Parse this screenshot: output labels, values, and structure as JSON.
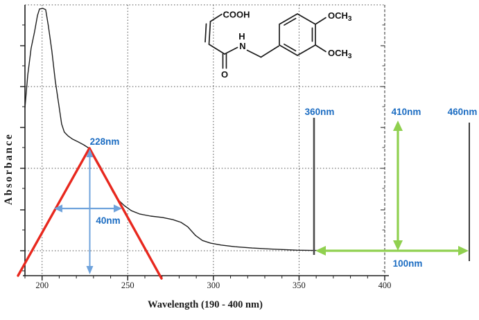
{
  "chart_data": {
    "type": "line",
    "title": "",
    "xlabel": "Wavelength (190 - 400 nm)",
    "ylabel": "Absorbance",
    "xlim": [
      190,
      400
    ],
    "ylim": [
      0,
      1
    ],
    "x_ticks": [
      200,
      250,
      300,
      350,
      400
    ],
    "x_tick_labels": [
      "200",
      "250",
      "300",
      "350",
      "400"
    ],
    "x_minor_tick_step_nm": 10,
    "grid": true,
    "legend": "none",
    "series": [
      {
        "name": "uv-vis-absorbance-spectrum",
        "points_nm_abs": [
          [
            190.0,
            0.62
          ],
          [
            191.6,
            0.74
          ],
          [
            193.6,
            0.84
          ],
          [
            195.6,
            0.9
          ],
          [
            197.3,
            0.96
          ],
          [
            198.5,
            0.985
          ],
          [
            200.5,
            0.987
          ],
          [
            202.1,
            0.982
          ],
          [
            203.7,
            0.92
          ],
          [
            205.7,
            0.83
          ],
          [
            207.7,
            0.72
          ],
          [
            209.8,
            0.63
          ],
          [
            211.4,
            0.56
          ],
          [
            213.0,
            0.53
          ],
          [
            215.0,
            0.517
          ],
          [
            217.8,
            0.504
          ],
          [
            221.0,
            0.494
          ],
          [
            224.3,
            0.483
          ],
          [
            227.5,
            0.47
          ],
          [
            230.7,
            0.44
          ],
          [
            234.3,
            0.4
          ],
          [
            238.0,
            0.35
          ],
          [
            241.2,
            0.31
          ],
          [
            244.4,
            0.28
          ],
          [
            248.1,
            0.258
          ],
          [
            252.1,
            0.24
          ],
          [
            256.9,
            0.228
          ],
          [
            263.4,
            0.22
          ],
          [
            270.2,
            0.215
          ],
          [
            276.3,
            0.207
          ],
          [
            281.1,
            0.197
          ],
          [
            285.1,
            0.18
          ],
          [
            289.6,
            0.148
          ],
          [
            293.6,
            0.13
          ],
          [
            298.4,
            0.12
          ],
          [
            304.5,
            0.113
          ],
          [
            312.5,
            0.107
          ],
          [
            322.6,
            0.102
          ],
          [
            334.7,
            0.098
          ],
          [
            348.8,
            0.094
          ],
          [
            358.1,
            0.093
          ],
          [
            373.0,
            0.093
          ],
          [
            387.2,
            0.092
          ],
          [
            399.3,
            0.092
          ]
        ]
      }
    ],
    "annotations": {
      "peak_nm": 228,
      "peak_label": "228nm",
      "bandwidth_nm": 40,
      "bandwidth_label": "40nm",
      "ref_line_1_nm": 360,
      "ref_line_1_label": "360nm",
      "ref_arrow_nm": 410,
      "ref_arrow_label": "410nm",
      "ref_line_2_nm": 460,
      "ref_line_2_label": "460nm",
      "span_nm": 100,
      "span_label": "100nm"
    }
  },
  "molecule": {
    "labels": {
      "cooh": "COOH",
      "amide_h": "H",
      "amide_n": "N",
      "carbonyl_o": "O",
      "methoxy_prefix": "OCH",
      "methoxy_subscript": "3"
    }
  },
  "colors": {
    "curve": "#1c1c1c",
    "fit_triangle_red": "#e8281e",
    "measure_arrow_blue": "#6fa3dc",
    "annotation_text_blue": "#1b6cc2",
    "reference_arrow_green": "#90d04f",
    "ref_line_dark": "#4a4a4a",
    "grid_dots": "#4d4d4d"
  }
}
